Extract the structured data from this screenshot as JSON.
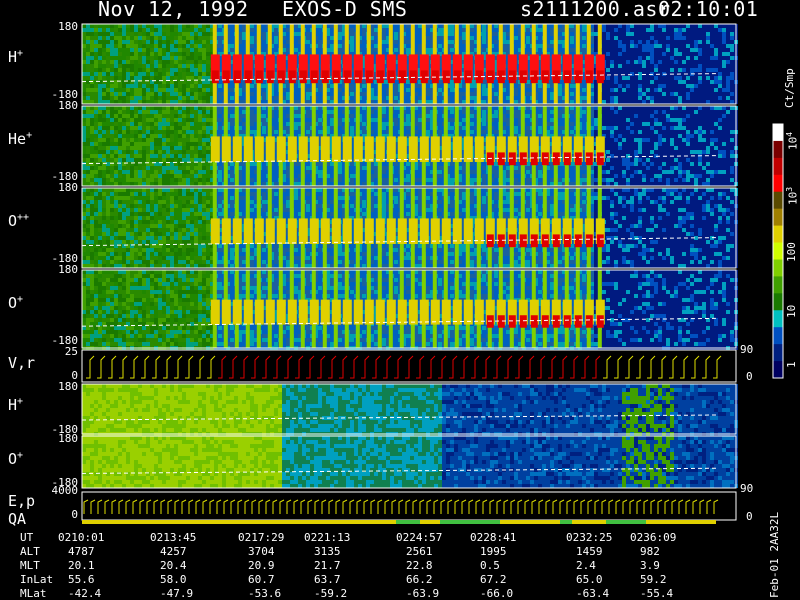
{
  "header": {
    "date": "Nov 12, 1992",
    "instrument": "EXOS-D SMS",
    "file": "s2111200.asr",
    "time": "02:10:01"
  },
  "colorbar": {
    "unit_label": "Ct/Smp",
    "ticks": [
      "10^4",
      "10^3",
      "100",
      "10",
      "1"
    ],
    "colors": [
      "#ffffff",
      "#7a0000",
      "#c00000",
      "#ff0000",
      "#5a4a00",
      "#a08000",
      "#e0d000",
      "#d0ff00",
      "#80d000",
      "#40a000",
      "#1a7a00",
      "#00c0c0",
      "#0050c0",
      "#002080",
      "#000060"
    ]
  },
  "chart_data": {
    "type": "heatmap",
    "title": "Nov 12, 1992   EXOS-D SMS",
    "x_range": [
      "02:10:01",
      "02:38:00"
    ],
    "panels": [
      {
        "species": "H",
        "charge": "+",
        "yticks": [
          "180",
          "-180"
        ],
        "ylim": [
          -180,
          180
        ],
        "pattern": "intense",
        "start": 0.22
      },
      {
        "species": "He",
        "charge": "+",
        "yticks": [
          "180",
          "-180"
        ],
        "ylim": [
          -180,
          180
        ],
        "pattern": "medium",
        "start": 0.22
      },
      {
        "species": "O",
        "charge": "++",
        "yticks": [
          "180",
          "-180"
        ],
        "ylim": [
          -180,
          180
        ],
        "pattern": "medium",
        "start": 0.22
      },
      {
        "species": "O",
        "charge": "+",
        "yticks": [
          "180",
          "-180"
        ],
        "ylim": [
          -180,
          180
        ],
        "pattern": "medium",
        "start": 0.22
      }
    ],
    "vr_panel": {
      "label": "V,r",
      "yticks": [
        "25",
        "0"
      ],
      "right_ticks": [
        "90",
        "0"
      ]
    },
    "low_panels": [
      {
        "species": "H",
        "charge": "+",
        "yticks": [
          "180",
          "-180"
        ],
        "ylim": [
          -180,
          180
        ]
      },
      {
        "species": "O",
        "charge": "+",
        "yticks": [
          "180",
          "-180"
        ],
        "ylim": [
          -180,
          180
        ],
        "right_ticks": [
          "90"
        ]
      }
    ],
    "ep_panel": {
      "label": "E,p",
      "yticks": [
        "4000",
        "0"
      ],
      "right_ticks": [
        "0"
      ]
    },
    "qa_label": "QA",
    "ephemeris": {
      "row_labels": [
        "UT",
        "ALT",
        "MLT",
        "InLat",
        "MLat"
      ],
      "columns": [
        {
          "UT": "0210:01",
          "ALT": "4787",
          "MLT": "20.1",
          "InLat": "55.6",
          "MLat": "-42.4"
        },
        {
          "UT": "0213:45",
          "ALT": "4257",
          "MLT": "20.4",
          "InLat": "58.0",
          "MLat": "-47.9"
        },
        {
          "UT": "0217:29",
          "ALT": "3704",
          "MLT": "20.9",
          "InLat": "60.7",
          "MLat": "-53.6"
        },
        {
          "UT": "0221:13",
          "ALT": "3135",
          "MLT": "21.7",
          "InLat": "63.7",
          "MLat": "-59.2"
        },
        {
          "UT": "0224:57",
          "ALT": "2561",
          "MLT": "22.8",
          "InLat": "66.2",
          "MLat": "-63.9"
        },
        {
          "UT": "0228:41",
          "ALT": "1995",
          "MLT": "0.5",
          "InLat": "67.2",
          "MLat": "-66.0"
        },
        {
          "UT": "0232:25",
          "ALT": "1459",
          "MLT": "2.4",
          "InLat": "65.0",
          "MLat": "-63.4"
        },
        {
          "UT": "0236:09",
          "ALT": "982",
          "MLT": "3.9",
          "InLat": "59.2",
          "MLat": "-55.4"
        }
      ]
    },
    "footer_id": "Feb-01 2AA32L"
  }
}
